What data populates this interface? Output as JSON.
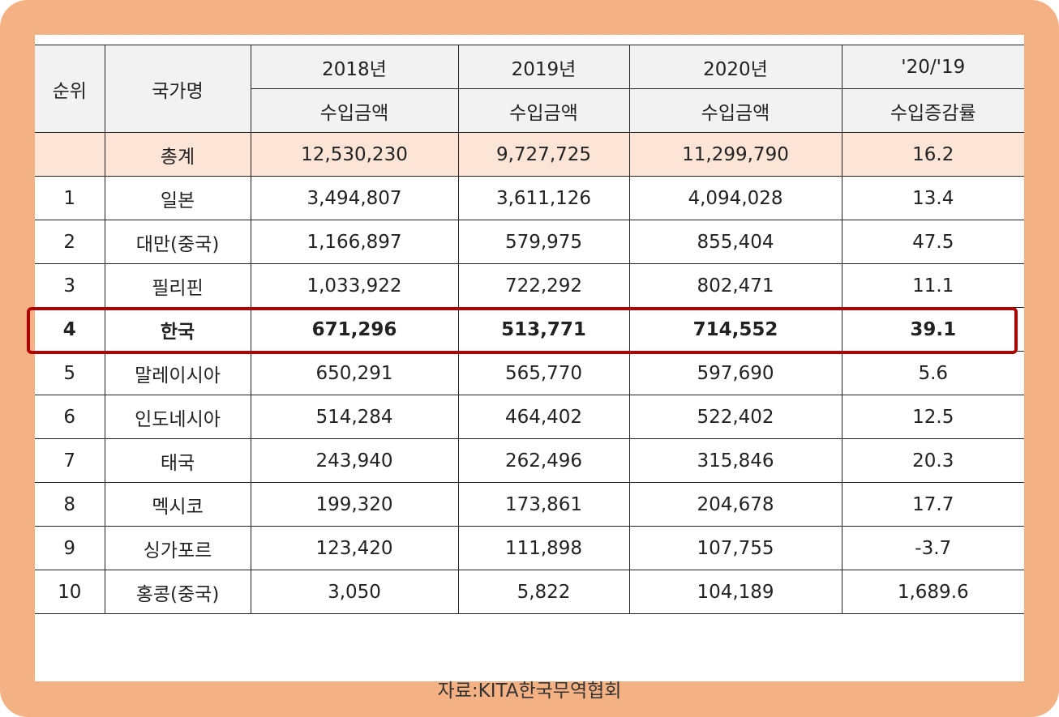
{
  "table": {
    "header": {
      "rank": "순위",
      "country": "국가명",
      "years": [
        "2018년",
        "2019년",
        "2020년",
        "'20/'19"
      ],
      "subs": [
        "수입금액",
        "수입금액",
        "수입금액",
        "수입증감률"
      ]
    },
    "total": {
      "rank": "",
      "country": "총계",
      "v2018": "12,530,230",
      "v2019": "9,727,725",
      "v2020": "11,299,790",
      "rate": "16.2"
    },
    "rows": [
      {
        "rank": "1",
        "country": "일본",
        "v2018": "3,494,807",
        "v2019": "3,611,126",
        "v2020": "4,094,028",
        "rate": "13.4"
      },
      {
        "rank": "2",
        "country": "대만(중국)",
        "v2018": "1,166,897",
        "v2019": "579,975",
        "v2020": "855,404",
        "rate": "47.5"
      },
      {
        "rank": "3",
        "country": "필리핀",
        "v2018": "1,033,922",
        "v2019": "722,292",
        "v2020": "802,471",
        "rate": "11.1"
      },
      {
        "rank": "4",
        "country": "한국",
        "v2018": "671,296",
        "v2019": "513,771",
        "v2020": "714,552",
        "rate": "39.1"
      },
      {
        "rank": "5",
        "country": "말레이시아",
        "v2018": "650,291",
        "v2019": "565,770",
        "v2020": "597,690",
        "rate": "5.6"
      },
      {
        "rank": "6",
        "country": "인도네시아",
        "v2018": "514,284",
        "v2019": "464,402",
        "v2020": "522,402",
        "rate": "12.5"
      },
      {
        "rank": "7",
        "country": "태국",
        "v2018": "243,940",
        "v2019": "262,496",
        "v2020": "315,846",
        "rate": "20.3"
      },
      {
        "rank": "8",
        "country": "멕시코",
        "v2018": "199,320",
        "v2019": "173,861",
        "v2020": "204,678",
        "rate": "17.7"
      },
      {
        "rank": "9",
        "country": "싱가포르",
        "v2018": "123,420",
        "v2019": "111,898",
        "v2020": "107,755",
        "rate": "-3.7"
      },
      {
        "rank": "10",
        "country": "홍콩(중국)",
        "v2018": "3,050",
        "v2019": "5,822",
        "v2020": "104,189",
        "rate": "1,689.6"
      }
    ],
    "highlighted_rank": "4"
  },
  "source": "자료:KITA한국무역협회",
  "colors": {
    "frame": "#f4b183",
    "header_bg": "#f2f2f2",
    "total_bg": "#fce4d6",
    "highlight_border": "#b00000"
  }
}
